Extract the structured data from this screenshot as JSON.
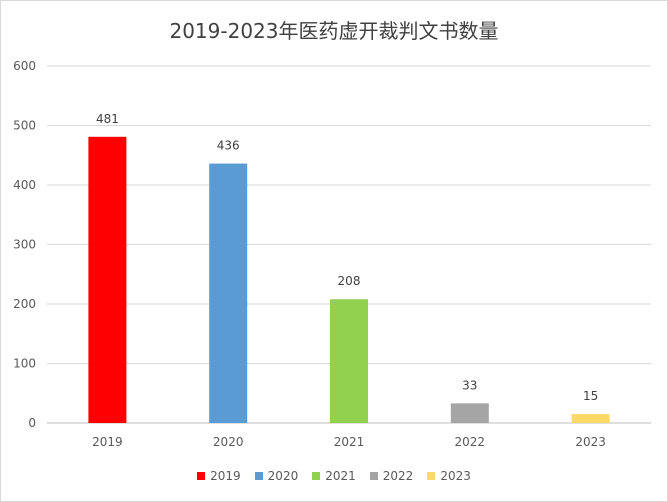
{
  "chart_data": {
    "type": "bar",
    "title": "2019-2023年医药虚开裁判文书数量",
    "categories": [
      "2019",
      "2020",
      "2021",
      "2022",
      "2023"
    ],
    "values": [
      481,
      436,
      208,
      33,
      15
    ],
    "colors": [
      "#ff0000",
      "#5b9bd5",
      "#92d050",
      "#a5a5a5",
      "#ffd966"
    ],
    "ylim": [
      0,
      600
    ],
    "yticks": [
      0,
      100,
      200,
      300,
      400,
      500,
      600
    ],
    "grid": true,
    "legend_position": "bottom"
  }
}
